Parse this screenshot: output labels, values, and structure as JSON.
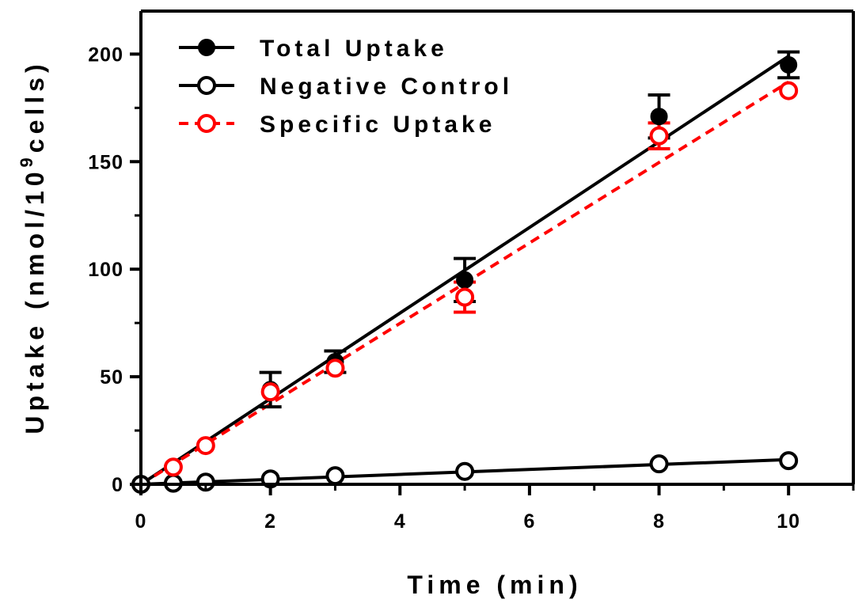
{
  "chart_data": {
    "type": "scatter",
    "xlabel": "Time (min)",
    "ylabel_parts": {
      "before": "Uptake (nmol/10",
      "superscript": "9",
      "after": "cells)"
    },
    "xlim": [
      0,
      11
    ],
    "ylim": [
      0,
      220
    ],
    "xticks": [
      0,
      2,
      4,
      6,
      8,
      10
    ],
    "yticks": [
      0,
      50,
      100,
      150,
      200
    ],
    "legend_position": "top-left",
    "series": [
      {
        "name": "Total Uptake",
        "color": "#000000",
        "marker": "filled-circle",
        "line": "solid",
        "points": [
          {
            "x": 0.5,
            "y": 8,
            "err": 0
          },
          {
            "x": 1,
            "y": 18,
            "err": 0
          },
          {
            "x": 2,
            "y": 44,
            "err": 8
          },
          {
            "x": 3,
            "y": 57,
            "err": 5
          },
          {
            "x": 5,
            "y": 95,
            "err": 10
          },
          {
            "x": 8,
            "y": 171,
            "err": 10
          },
          {
            "x": 10,
            "y": 195,
            "err": 6
          }
        ],
        "fit": [
          [
            0,
            0
          ],
          [
            10,
            199
          ]
        ]
      },
      {
        "name": "Negative Control",
        "color": "#000000",
        "marker": "open-circle",
        "line": "solid",
        "points": [
          {
            "x": 0,
            "y": 0,
            "err": 0
          },
          {
            "x": 0.5,
            "y": 0.5,
            "err": 0
          },
          {
            "x": 1,
            "y": 1,
            "err": 0
          },
          {
            "x": 2,
            "y": 2.5,
            "err": 0
          },
          {
            "x": 3,
            "y": 4,
            "err": 0
          },
          {
            "x": 5,
            "y": 6,
            "err": 0
          },
          {
            "x": 8,
            "y": 9.5,
            "err": 0
          },
          {
            "x": 10,
            "y": 11,
            "err": 0
          }
        ],
        "fit": [
          [
            0,
            0
          ],
          [
            10,
            11.5
          ]
        ]
      },
      {
        "name": "Specific Uptake",
        "color": "#ff0000",
        "marker": "open-circle",
        "line": "dashed",
        "points": [
          {
            "x": 0.5,
            "y": 8,
            "err": 0
          },
          {
            "x": 1,
            "y": 18,
            "err": 0
          },
          {
            "x": 2,
            "y": 43,
            "err": 0
          },
          {
            "x": 3,
            "y": 54,
            "err": 0
          },
          {
            "x": 5,
            "y": 87,
            "err": 7
          },
          {
            "x": 8,
            "y": 162,
            "err": 6
          },
          {
            "x": 10,
            "y": 183,
            "err": 0
          }
        ],
        "fit": [
          [
            0,
            0
          ],
          [
            10,
            187
          ]
        ]
      }
    ]
  }
}
